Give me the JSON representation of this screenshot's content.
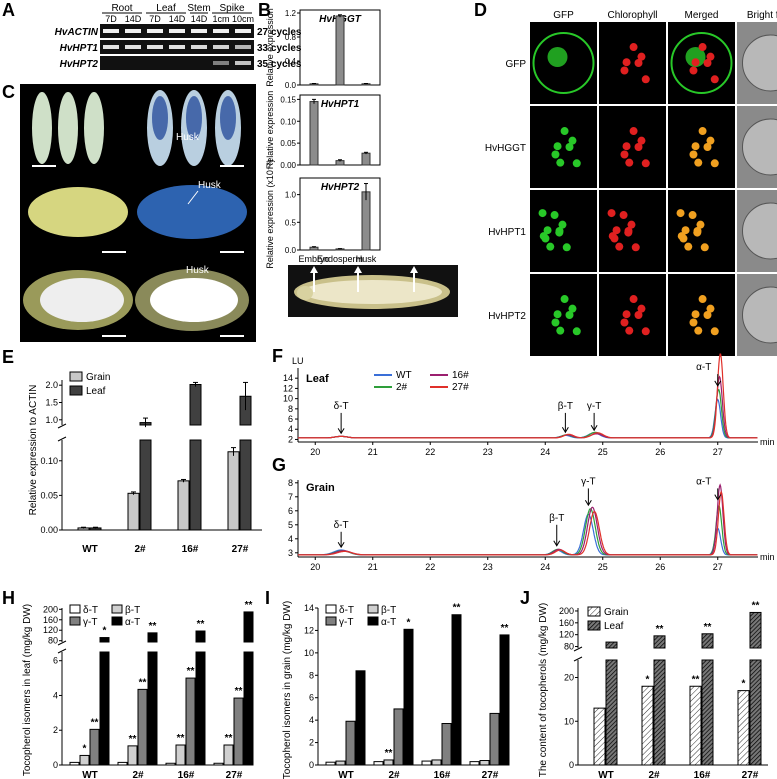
{
  "panel_letters": {
    "A": "A",
    "B": "B",
    "C": "C",
    "D": "D",
    "E": "E",
    "F": "F",
    "G": "G",
    "H": "H",
    "I": "I",
    "J": "J"
  },
  "panelA": {
    "tissues": [
      "Root",
      "Leaf",
      "Stem",
      "Spike"
    ],
    "stages": [
      "7D",
      "14D",
      "7D",
      "14D",
      "14D",
      "1cm",
      "10cm"
    ],
    "genes": [
      {
        "name": "HvACTIN",
        "cycles": "27 cycles",
        "bands": [
          1,
          1,
          1,
          1,
          1,
          1,
          1
        ]
      },
      {
        "name": "HvHPT1",
        "cycles": "33 cycles",
        "bands": [
          0.9,
          0.9,
          0.9,
          0.9,
          0.85,
          0.8,
          0.6
        ]
      },
      {
        "name": "HvHPT2",
        "cycles": "35 cycles",
        "bands": [
          0,
          0,
          0,
          0,
          0,
          0.25,
          0.7
        ]
      }
    ]
  },
  "panelB": {
    "ylabel": "Relative expression",
    "ylabel3": "Relative expression (x10⁻³)",
    "categories": [
      "Embryo",
      "Endosperm",
      "Husk"
    ],
    "subplots": [
      {
        "gene": "HvHGGT",
        "values": [
          0.02,
          1.15,
          0.02
        ],
        "errors": [
          0.005,
          0.02,
          0.005
        ],
        "ticks": [
          "0.0",
          "0.4",
          "0.8",
          "1.2"
        ],
        "ymax": 1.25
      },
      {
        "gene": "HvHPT1",
        "values": [
          0.145,
          0.01,
          0.027
        ],
        "errors": [
          0.005,
          0.002,
          0.002
        ],
        "ticks": [
          "0.00",
          "0.05",
          "0.10",
          "0.15"
        ],
        "ymax": 0.16
      },
      {
        "gene": "HvHPT2",
        "values": [
          0.05,
          0.02,
          1.05
        ],
        "errors": [
          0.01,
          0.005,
          0.15
        ],
        "ticks": [
          "0.0",
          "0.5",
          "1.0"
        ],
        "ymax": 1.3
      }
    ]
  },
  "panelC": {
    "husk_label": "Husk"
  },
  "panelD": {
    "columns": [
      "GFP",
      "Chlorophyll",
      "Merged",
      "Bright field"
    ],
    "rows": [
      "GFP",
      "HvHGGT",
      "HvHPT1",
      "HvHPT2"
    ]
  },
  "chart_data": [
    {
      "id": "E",
      "type": "bar",
      "ylabel": "Relative expression to ACTIN",
      "categories": [
        "WT",
        "2#",
        "16#",
        "27#"
      ],
      "series": [
        {
          "name": "Grain",
          "color": "#c8c8c8",
          "values": [
            0.003,
            0.053,
            0.071,
            0.113
          ],
          "errors": [
            0.001,
            0.002,
            0.002,
            0.006
          ]
        },
        {
          "name": "Leaf",
          "color": "#404040",
          "values": [
            0.003,
            0.92,
            2.02,
            1.68
          ],
          "errors": [
            0.001,
            0.13,
            0.06,
            0.4
          ]
        }
      ],
      "lower_ticks": [
        "0.00",
        "0.05",
        "0.10"
      ],
      "upper_ticks": [
        "1.0",
        "1.5",
        "2.0"
      ]
    },
    {
      "id": "F",
      "type": "line",
      "title": "Leaf",
      "ylabel": "LU",
      "xlabel": "min",
      "x_ticks": [
        "20",
        "21",
        "22",
        "23",
        "24",
        "25",
        "26",
        "27"
      ],
      "y_ticks": [
        "2",
        "4",
        "6",
        "8",
        "10",
        "12",
        "14"
      ],
      "series": [
        {
          "name": "WT",
          "color": "#3a6fd8"
        },
        {
          "name": "2#",
          "color": "#2e9e3a"
        },
        {
          "name": "16#",
          "color": "#9b1f6f"
        },
        {
          "name": "27#",
          "color": "#e0302a"
        }
      ],
      "peaks": [
        "δ-T",
        "β-T",
        "γ-T",
        "α-T"
      ]
    },
    {
      "id": "G",
      "type": "line",
      "title": "Grain",
      "xlabel": "min",
      "x_ticks": [
        "20",
        "21",
        "22",
        "23",
        "24",
        "25",
        "26",
        "27"
      ],
      "y_ticks": [
        "3",
        "4",
        "5",
        "6",
        "7",
        "8"
      ],
      "peaks": [
        "δ-T",
        "β-T",
        "γ-T",
        "α-T"
      ]
    },
    {
      "id": "H",
      "type": "bar",
      "ylabel": "Tocopherol isomers in leaf (mg/kg DW)",
      "categories": [
        "WT",
        "2#",
        "16#",
        "27#"
      ],
      "series": [
        {
          "name": "δ-T",
          "values": [
            0.15,
            0.15,
            0.1,
            0.1
          ]
        },
        {
          "name": "β-T",
          "values": [
            0.55,
            1.1,
            1.15,
            1.15
          ]
        },
        {
          "name": "γ-T",
          "values": [
            2.05,
            4.35,
            5.0,
            3.85
          ]
        },
        {
          "name": "α-T",
          "values": [
            92,
            110,
            117,
            190
          ]
        }
      ],
      "sig": [
        [
          "",
          "",
          "",
          ""
        ],
        [
          "*",
          "**",
          "**",
          "**"
        ],
        [
          "**",
          "**",
          "**",
          "**"
        ],
        [
          "*",
          "**",
          "**",
          "**"
        ]
      ],
      "lower_ticks": [
        "0",
        "2",
        "4",
        "6"
      ],
      "upper_ticks": [
        "80",
        "120",
        "160",
        "200"
      ]
    },
    {
      "id": "I",
      "type": "bar",
      "ylabel": "Tocopherol isomers in grain (mg/kg DW)",
      "categories": [
        "WT",
        "2#",
        "16#",
        "27#"
      ],
      "series": [
        {
          "name": "δ-T",
          "values": [
            0.25,
            0.3,
            0.35,
            0.3
          ]
        },
        {
          "name": "β-T",
          "values": [
            0.35,
            0.45,
            0.45,
            0.4
          ]
        },
        {
          "name": "γ-T",
          "values": [
            3.9,
            5.0,
            3.7,
            4.6
          ]
        },
        {
          "name": "α-T",
          "values": [
            8.4,
            12.1,
            13.4,
            11.6
          ]
        }
      ],
      "sig": [
        [
          "",
          "",
          "",
          ""
        ],
        [
          "",
          "**",
          "",
          ""
        ],
        [
          "",
          "",
          "",
          ""
        ],
        [
          "",
          "*",
          "**",
          "**"
        ]
      ],
      "ticks": [
        "0",
        "2",
        "4",
        "6",
        "8",
        "10",
        "12",
        "14"
      ]
    },
    {
      "id": "J",
      "type": "bar",
      "ylabel": "The content of tocopherols (mg/kg DW)",
      "categories": [
        "WT",
        "2#",
        "16#",
        "27#"
      ],
      "series": [
        {
          "name": "Grain",
          "values": [
            13,
            18,
            18,
            17
          ]
        },
        {
          "name": "Leaf",
          "values": [
            95,
            116,
            123,
            195
          ]
        }
      ],
      "sig": [
        [
          "",
          "*",
          "**",
          "*"
        ],
        [
          "",
          "**",
          "**",
          "**"
        ]
      ],
      "lower_ticks": [
        "0",
        "10",
        "20"
      ],
      "upper_ticks": [
        "80",
        "120",
        "160",
        "200"
      ]
    }
  ]
}
